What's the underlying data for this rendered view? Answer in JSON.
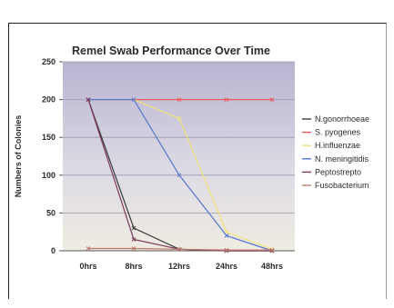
{
  "chart_data": {
    "type": "line",
    "title": "Remel Swab Performance Over Time",
    "xlabel": "",
    "ylabel": "Numbers of Colonies",
    "categories": [
      "0hrs",
      "8hrs",
      "12hrs",
      "24hrs",
      "48hrs"
    ],
    "ylim": [
      0,
      250
    ],
    "yticks": [
      0,
      50,
      100,
      150,
      200,
      250
    ],
    "grid": true,
    "legend_position": "right",
    "series": [
      {
        "name": "N.gonorrhoeae",
        "color": "#3a3a3a",
        "values": [
          200,
          30,
          2,
          0,
          0
        ]
      },
      {
        "name": "S. pyogenes",
        "color": "#e85a5a",
        "values": [
          200,
          200,
          200,
          200,
          200
        ]
      },
      {
        "name": "H.influenzae",
        "color": "#f2e27a",
        "values": [
          200,
          200,
          175,
          25,
          2
        ]
      },
      {
        "name": "N. meningitidis",
        "color": "#5577cc",
        "values": [
          200,
          200,
          100,
          20,
          0
        ]
      },
      {
        "name": "Peptostrepto",
        "color": "#7a3a5a",
        "values": [
          200,
          15,
          2,
          0,
          0
        ]
      },
      {
        "name": "Fusobacterium",
        "color": "#c07a6a",
        "values": [
          3,
          3,
          2,
          1,
          1
        ]
      }
    ]
  }
}
